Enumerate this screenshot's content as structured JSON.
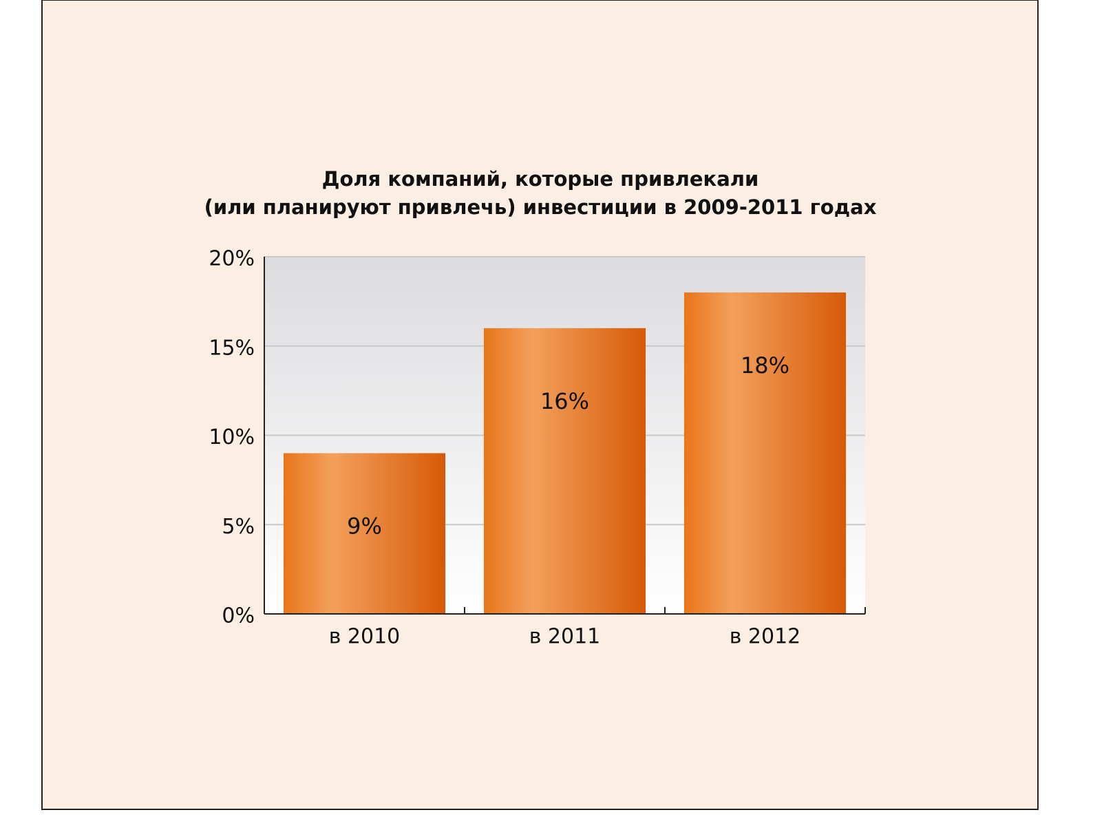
{
  "chart_data": {
    "type": "bar",
    "title": [
      "Доля компаний, которые привлекали",
      "(или планируют привлечь) инвестиции в 2009-2011 годах"
    ],
    "categories": [
      "в 2010",
      "в 2011",
      "в 2012"
    ],
    "values": [
      9,
      16,
      18
    ],
    "value_labels": [
      "9%",
      "16%",
      "18%"
    ],
    "color": "#e8751a",
    "ylim": [
      0,
      20
    ],
    "yticks": [
      {
        "value": 0,
        "label": "0%"
      },
      {
        "value": 5,
        "label": "5%"
      },
      {
        "value": 10,
        "label": "10%"
      },
      {
        "value": 15,
        "label": "15%"
      },
      {
        "value": 20,
        "label": "20%"
      }
    ],
    "grid": true
  }
}
